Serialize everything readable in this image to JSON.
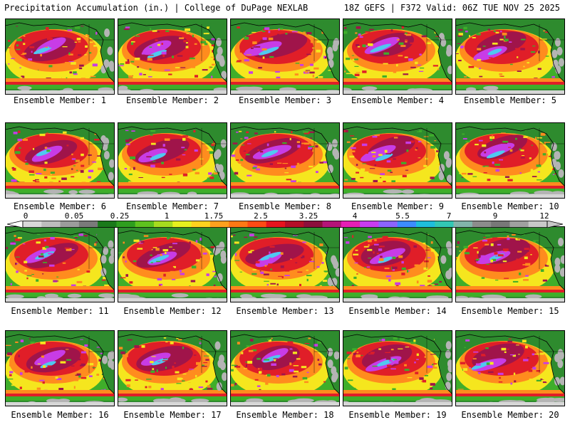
{
  "header": {
    "title": "Precipitation Accumulation (in.) | College of DuPage NEXLAB",
    "valid": "18Z GEFS | F372 Valid: 06Z TUE NOV 25 2025"
  },
  "members": [
    {
      "label": "Ensemble Member: 1"
    },
    {
      "label": "Ensemble Member: 2"
    },
    {
      "label": "Ensemble Member: 3"
    },
    {
      "label": "Ensemble Member: 4"
    },
    {
      "label": "Ensemble Member: 5"
    },
    {
      "label": "Ensemble Member: 6"
    },
    {
      "label": "Ensemble Member: 7"
    },
    {
      "label": "Ensemble Member: 8"
    },
    {
      "label": "Ensemble Member: 9"
    },
    {
      "label": "Ensemble Member: 10"
    },
    {
      "label": "Ensemble Member: 11"
    },
    {
      "label": "Ensemble Member: 12"
    },
    {
      "label": "Ensemble Member: 13"
    },
    {
      "label": "Ensemble Member: 14"
    },
    {
      "label": "Ensemble Member: 15"
    },
    {
      "label": "Ensemble Member: 16"
    },
    {
      "label": "Ensemble Member: 17"
    },
    {
      "label": "Ensemble Member: 18"
    },
    {
      "label": "Ensemble Member: 19"
    },
    {
      "label": "Ensemble Member: 20"
    }
  ],
  "colorbar": {
    "labels": [
      "0",
      "0.05",
      "0.25",
      "1",
      "1.75",
      "2.5",
      "3.25",
      "4",
      "5.5",
      "7",
      "9",
      "12"
    ],
    "colors": [
      "#d8d8d8",
      "#bcbcbc",
      "#9c9c9c",
      "#7a7a7a",
      "#1a7a1a",
      "#2e9e1e",
      "#5ec21e",
      "#a6dc1e",
      "#e6f01e",
      "#ffd21e",
      "#ffa01e",
      "#ff7814",
      "#ff4a14",
      "#e6141e",
      "#b40f28",
      "#8c0f3c",
      "#b41478",
      "#e61eb4",
      "#c83cf0",
      "#8c64ff",
      "#3c8cff",
      "#1ebedc",
      "#32c8b4",
      "#82b4aa",
      "#8c8c8c",
      "#787878",
      "#a0a0a0",
      "#c8c8c8"
    ],
    "land": "#2e8b2e",
    "ocean_low": "#3fae2a",
    "ocean_mid": "#f5e61e",
    "ocean_high": "#ff8c1e",
    "heavy": "#e01e28",
    "extreme": "#a0144a",
    "purple": "#c83ce6",
    "cyan": "#50c8f0",
    "snow_grey": "#b4b4b4"
  }
}
